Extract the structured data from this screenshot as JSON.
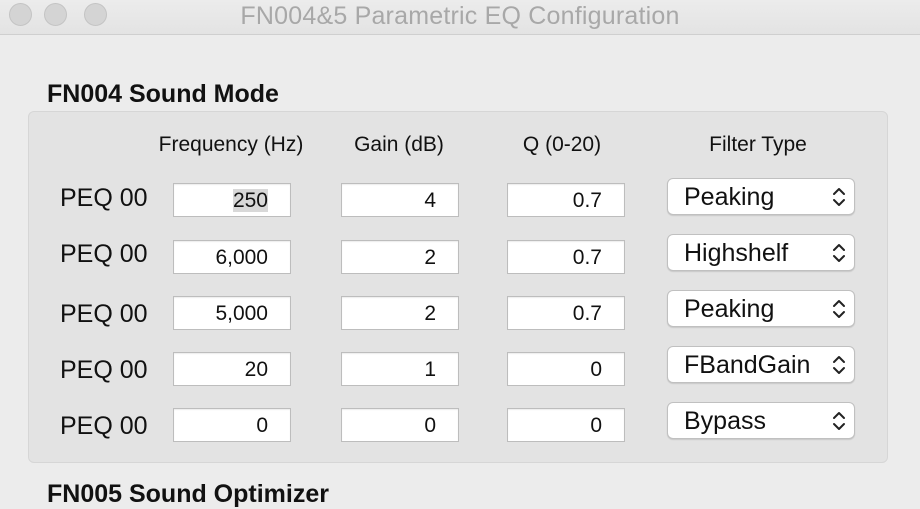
{
  "window": {
    "title": "FN004&5 Parametric EQ Configuration"
  },
  "section1": {
    "title": "FN004 Sound Mode",
    "columns": {
      "frequency": "Frequency (Hz)",
      "gain": "Gain (dB)",
      "q": "Q (0-20)",
      "filter_type": "Filter Type"
    },
    "rows": [
      {
        "label": "PEQ 00",
        "frequency": "250",
        "gain": "4",
        "q": "0.7",
        "filter": "Peaking"
      },
      {
        "label": "PEQ 00",
        "frequency": "6,000",
        "gain": "2",
        "q": "0.7",
        "filter": "Highshelf"
      },
      {
        "label": "PEQ 00",
        "frequency": "5,000",
        "gain": "2",
        "q": "0.7",
        "filter": "Peaking"
      },
      {
        "label": "PEQ 00",
        "frequency": "20",
        "gain": "1",
        "q": "0",
        "filter": "FBandGain"
      },
      {
        "label": "PEQ 00",
        "frequency": "0",
        "gain": "0",
        "q": "0",
        "filter": "Bypass"
      }
    ]
  },
  "section2": {
    "title": "FN005 Sound Optimizer"
  },
  "icons": {
    "close": "close-icon",
    "minimize": "minimize-icon",
    "zoom": "zoom-icon",
    "select_arrows": "chevron-up-down-icon"
  }
}
